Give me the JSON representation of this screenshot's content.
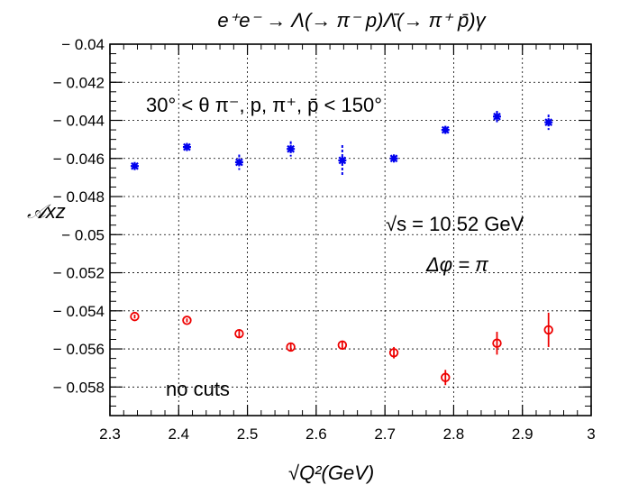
{
  "chart_data": {
    "type": "scatter",
    "title": "e⁺e⁻ → Λ(→ π⁻ p)Λ̄(→ π⁺ p̄)γ",
    "xlabel": "√Q²(GeV)",
    "ylabel": "𝒜xz",
    "xlim": [
      2.3,
      3.0
    ],
    "ylim": [
      -0.0595,
      -0.04
    ],
    "grid": true,
    "x_ticks": [
      2.3,
      2.4,
      2.5,
      2.6,
      2.7,
      2.8,
      2.9,
      3.0
    ],
    "x_tick_labels": [
      "2.3",
      "2.4",
      "2.5",
      "2.6",
      "2.7",
      "2.8",
      "2.9",
      "3"
    ],
    "y_ticks": [
      -0.04,
      -0.042,
      -0.044,
      -0.046,
      -0.048,
      -0.05,
      -0.052,
      -0.054,
      -0.056,
      -0.058
    ],
    "y_tick_labels": [
      "− 0.04",
      "− 0.042",
      "− 0.044",
      "− 0.046",
      "− 0.048",
      "− 0.05",
      "− 0.052",
      "− 0.054",
      "− 0.056",
      "− 0.058"
    ],
    "series": [
      {
        "color": "#0000ee",
        "marker": "star",
        "x": [
          2.336,
          2.412,
          2.488,
          2.563,
          2.638,
          2.713,
          2.788,
          2.863,
          2.938
        ],
        "y": [
          -0.0464,
          -0.0454,
          -0.0462,
          -0.0455,
          -0.0461,
          -0.046,
          -0.0445,
          -0.0438,
          -0.0441
        ],
        "err": [
          0.0002,
          0.0002,
          0.0004,
          0.0004,
          0.0008,
          0.0002,
          0.0002,
          0.0003,
          0.0004
        ]
      },
      {
        "color": "#ee0000",
        "marker": "circle",
        "x": [
          2.336,
          2.412,
          2.488,
          2.563,
          2.638,
          2.713,
          2.788,
          2.863,
          2.938
        ],
        "y": [
          -0.0543,
          -0.0545,
          -0.0552,
          -0.0559,
          -0.0558,
          -0.0562,
          -0.0575,
          -0.0557,
          -0.055
        ],
        "err": [
          0.0001,
          0.0001,
          0.0002,
          0.0002,
          0.0002,
          0.0003,
          0.0004,
          0.0006,
          0.0009
        ]
      }
    ],
    "annotations": {
      "angle_cut": "30° < θ π⁻, p, π⁺, p̄ < 150°",
      "energy": "√s = 10.52 GeV",
      "phase": "Δφ =  π",
      "no_cuts": "no cuts"
    }
  }
}
